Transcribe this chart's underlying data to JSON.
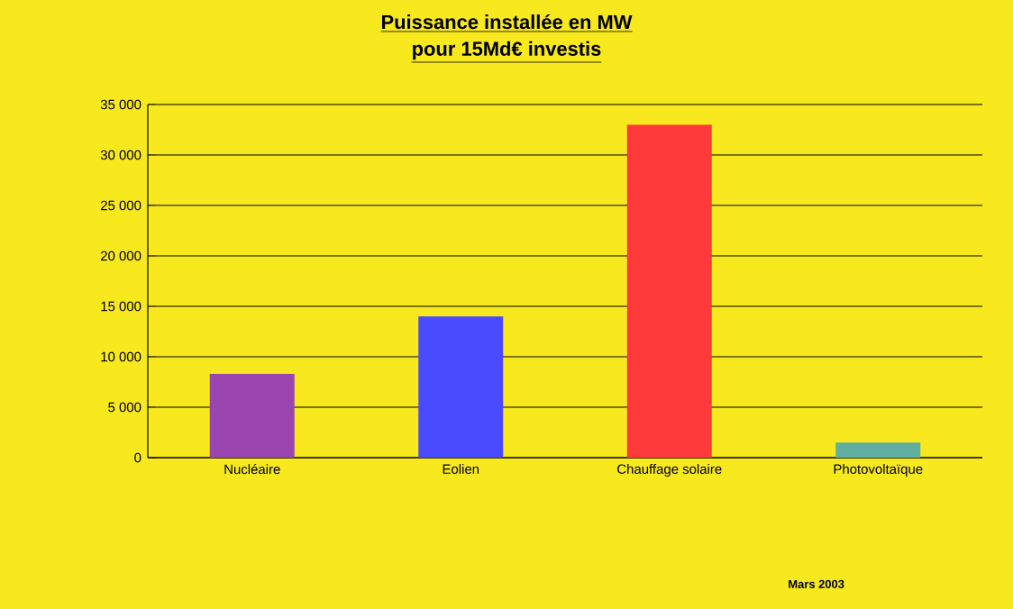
{
  "chart_data": {
    "type": "bar",
    "title": "Puissance installée en MW",
    "subtitle": "pour 15Md€ investis",
    "categories": [
      "Nucléaire",
      "Eolien",
      "Chauffage solaire",
      "Photovoltaïque"
    ],
    "values": [
      8300,
      14000,
      33000,
      1500
    ],
    "colors": [
      "#9b45b0",
      "#4a4aff",
      "#ff3a3a",
      "#5fb0a0"
    ],
    "ylim": [
      0,
      35000
    ],
    "yticks": [
      0,
      {
        "value": 5000,
        "label": "5 000"
      },
      {
        "value": 10000,
        "label": "10 000"
      },
      {
        "value": 15000,
        "label": "15 000"
      },
      {
        "value": 20000,
        "label": "20 000"
      },
      {
        "value": 25000,
        "label": "25 000"
      },
      {
        "value": 30000,
        "label": "30 000"
      },
      {
        "value": 35000,
        "label": "35 000"
      }
    ],
    "grid": "y",
    "annotations": [
      "Mars 2003"
    ]
  }
}
